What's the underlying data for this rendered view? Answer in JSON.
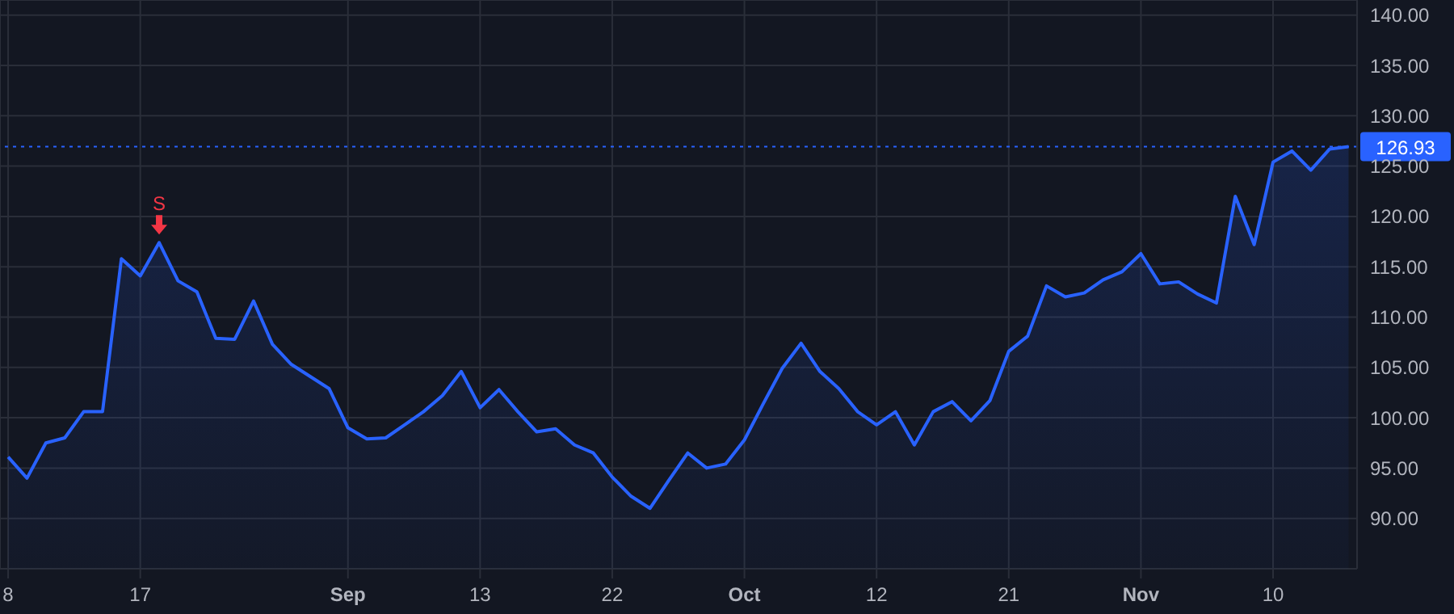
{
  "chart_data": {
    "type": "area",
    "categories": [
      "8",
      null,
      null,
      null,
      null,
      null,
      null,
      "17",
      null,
      null,
      null,
      null,
      null,
      null,
      null,
      null,
      null,
      null,
      "Sep",
      null,
      null,
      null,
      null,
      null,
      null,
      "13",
      null,
      null,
      null,
      null,
      null,
      null,
      "22",
      null,
      null,
      null,
      null,
      null,
      null,
      "Oct",
      null,
      null,
      null,
      null,
      null,
      null,
      "12",
      null,
      null,
      null,
      null,
      null,
      null,
      "21",
      null,
      null,
      null,
      null,
      null,
      null,
      "Nov",
      null,
      null,
      null,
      null,
      null,
      null,
      "10",
      null,
      null,
      null,
      null
    ],
    "series": [
      {
        "color": "#2962ff",
        "values": [
          96.1,
          94.0,
          97.5,
          98.0,
          100.6,
          100.6,
          115.8,
          114.1,
          117.4,
          113.6,
          112.5,
          107.9,
          107.8,
          111.6,
          107.3,
          105.3,
          104.1,
          102.9,
          99.0,
          97.9,
          98.0,
          99.3,
          100.6,
          102.2,
          104.6,
          101.0,
          102.8,
          100.6,
          98.6,
          98.9,
          97.3,
          96.5,
          94.1,
          92.2,
          91.0,
          93.8,
          96.5,
          95.0,
          95.4,
          97.8,
          101.4,
          104.9,
          107.4,
          104.6,
          102.9,
          100.6,
          99.3,
          100.6,
          97.3,
          100.6,
          101.6,
          99.7,
          101.7,
          106.6,
          108.1,
          113.1,
          112.0,
          112.4,
          113.7,
          114.5,
          116.3,
          113.3,
          113.5,
          112.3,
          111.4,
          122.0,
          117.2,
          125.4,
          126.5,
          124.6,
          126.7,
          126.93
        ]
      }
    ],
    "ylim": [
      85,
      141.5
    ],
    "yticks": [
      {
        "value": 90,
        "label": "90.00"
      },
      {
        "value": 95,
        "label": "95.00"
      },
      {
        "value": 100,
        "label": "100.00"
      },
      {
        "value": 105,
        "label": "105.00"
      },
      {
        "value": 110,
        "label": "110.00"
      },
      {
        "value": 115,
        "label": "115.00"
      },
      {
        "value": 120,
        "label": "120.00"
      },
      {
        "value": 125,
        "label": "125.00"
      },
      {
        "value": 130,
        "label": "130.00"
      },
      {
        "value": 135,
        "label": "135.00"
      },
      {
        "value": 140,
        "label": "140.00"
      }
    ],
    "ref_lines": [
      {
        "axis": "y",
        "value": 126.93,
        "label": "126.93",
        "color": "#2962ff",
        "line_style": "dotted"
      }
    ],
    "annotations": [
      {
        "text": "S",
        "y": 117.4
      }
    ],
    "grid": true
  }
}
